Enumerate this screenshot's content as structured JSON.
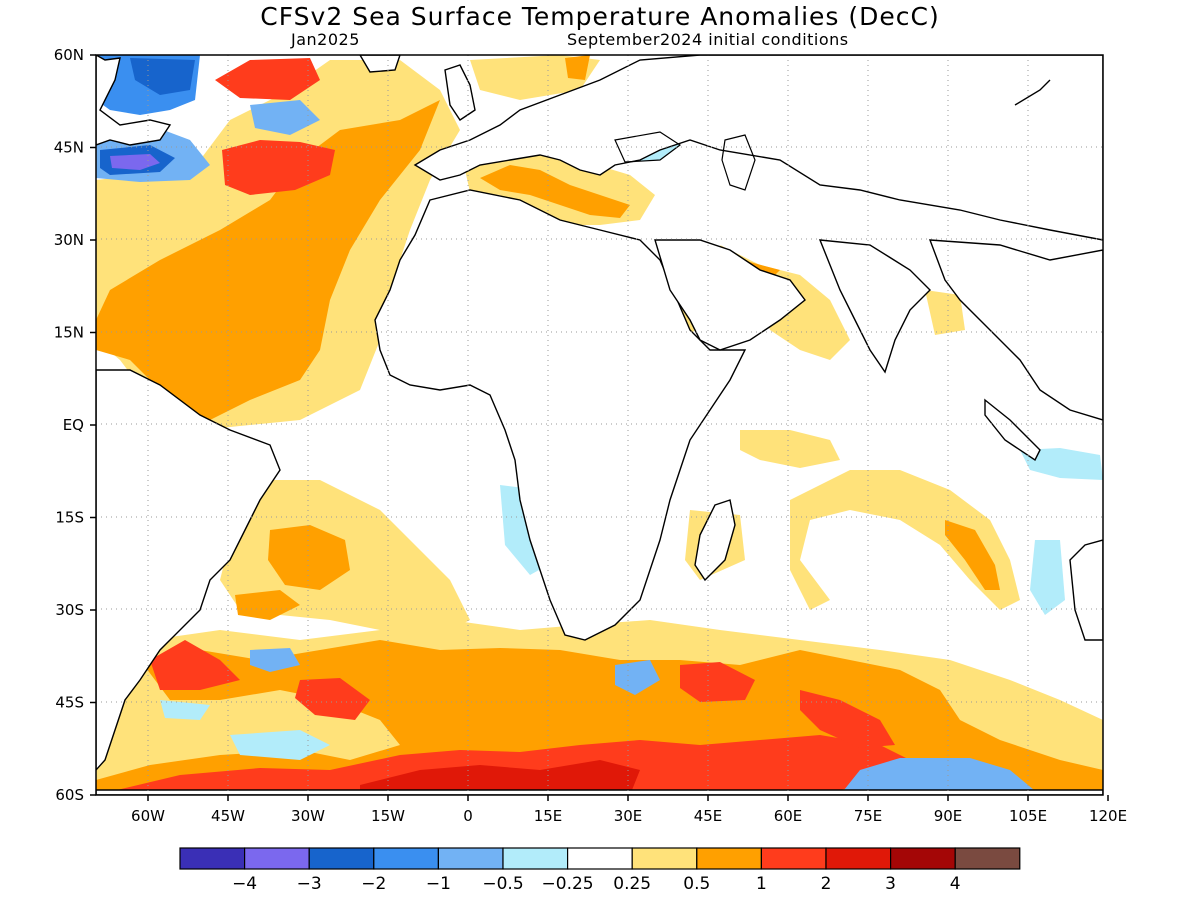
{
  "title": "CFSv2 Sea Surface Temperature Anomalies (DecC)",
  "valid_month": "Jan2025",
  "initial_conditions": "September2024 initial conditions",
  "lat_labels": [
    "60N",
    "45N",
    "30N",
    "15N",
    "EQ",
    "15S",
    "30S",
    "45S",
    "60S"
  ],
  "lon_labels": [
    "60W",
    "45W",
    "30W",
    "15W",
    "0",
    "15E",
    "30E",
    "45E",
    "60E",
    "75E",
    "90E",
    "105E",
    "120E"
  ],
  "colorbar": {
    "colors": [
      "#3a2fb6",
      "#7b68ee",
      "#1764cc",
      "#3a8ff0",
      "#72b2f4",
      "#b2ecfa",
      "#ffffff",
      "#ffe27a",
      "#ffa000",
      "#ff3c1c",
      "#e01808",
      "#a40606",
      "#7a4a40"
    ],
    "labels": [
      "−4",
      "−3",
      "−2",
      "−1",
      "−0.5",
      "−0.25",
      "0.25",
      "0.5",
      "1",
      "2",
      "3",
      "4"
    ]
  }
}
